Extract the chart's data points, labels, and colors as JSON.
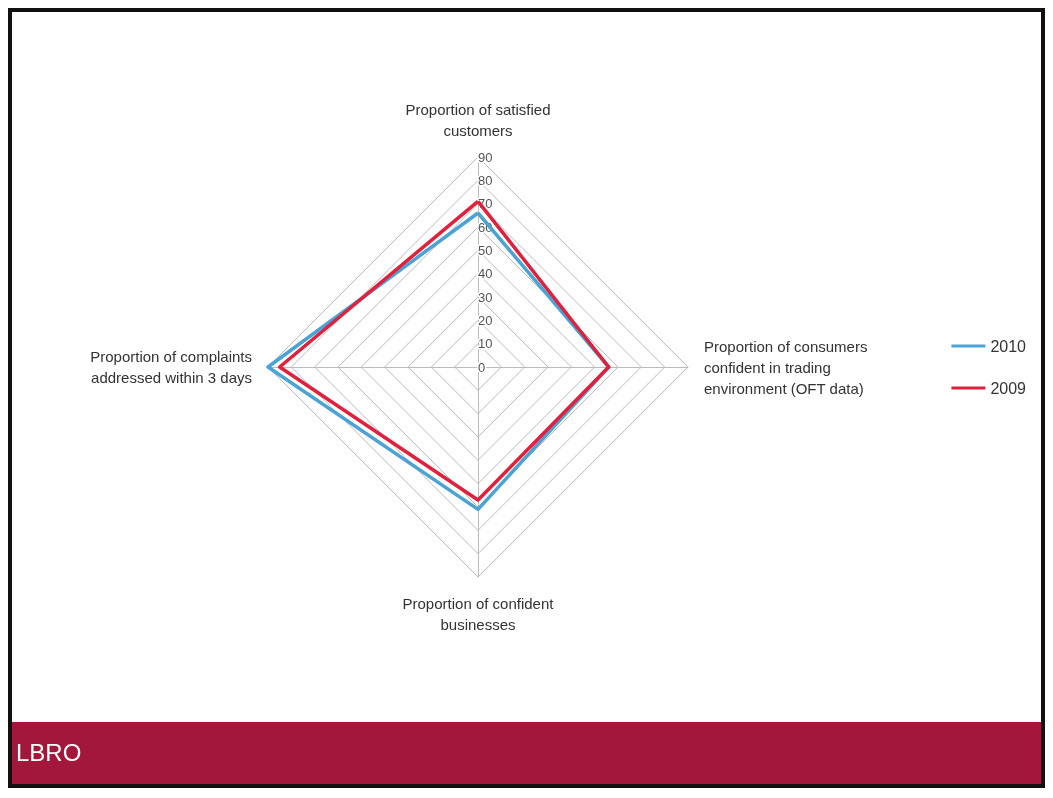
{
  "chart_data": {
    "type": "radar",
    "categories": [
      "Proportion of satisfied customers",
      "Proportion of consumers confident in trading environment (OFT data)",
      "Proportion of confident businesses",
      "Proportion of complaints addressed within 3 days"
    ],
    "series": [
      {
        "name": "2010",
        "color": "#4aa3d4",
        "values": [
          66,
          56,
          61,
          90
        ]
      },
      {
        "name": "2009",
        "color": "#e0203c",
        "values": [
          71,
          56,
          57,
          85
        ]
      }
    ],
    "ylim": [
      0,
      90
    ],
    "yticks": [
      0,
      10,
      20,
      30,
      40,
      50,
      60,
      70,
      80,
      90
    ],
    "grid": true,
    "legend": "right",
    "marker": "none",
    "annotations": [
      "LBRO"
    ]
  }
}
